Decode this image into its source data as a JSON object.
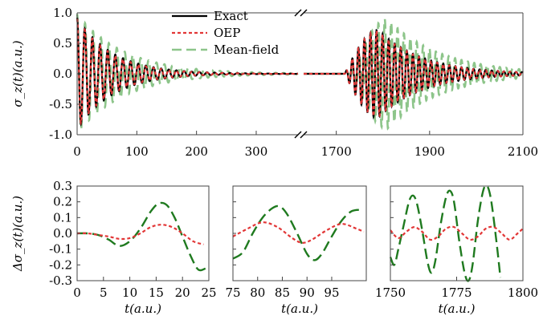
{
  "chart_data": [
    {
      "id": "top",
      "type": "line",
      "ylabel": "σ_z(t)(a.u.)",
      "ylim": [
        -1.0,
        1.0
      ],
      "yticks": [
        "-1.0",
        "-0.5",
        "0.0",
        "0.5",
        "1.0"
      ],
      "x_broken": true,
      "segments": [
        {
          "xlim": [
            0,
            370
          ],
          "xticks": [
            0,
            100,
            200,
            300
          ]
        },
        {
          "xlim": [
            1630,
            2100
          ],
          "xticks": [
            1700,
            1900,
            2100
          ]
        }
      ],
      "legend": {
        "position": "top-center"
      },
      "series": [
        {
          "name": "Exact",
          "color": "#000000",
          "style": "solid",
          "segment1": {
            "amplitude": 0.92,
            "period": 12.8,
            "decay": 60
          },
          "segment2": {
            "amplitude": 0.72,
            "period": 13.0,
            "rise_start": 1718,
            "peak": 1790,
            "decay": 95
          }
        },
        {
          "name": "OEP",
          "color": "#e23636",
          "style": "dotted",
          "segment1": {
            "amplitude": 0.9,
            "period": 12.8,
            "decay": 58
          },
          "segment2": {
            "amplitude": 0.71,
            "period": 13.0,
            "rise_start": 1718,
            "peak": 1790,
            "decay": 93
          }
        },
        {
          "name": "Mean-field",
          "color": "#8dc58a",
          "style": "dashed",
          "segment1": {
            "amplitude": 0.98,
            "period": 13.3,
            "decay": 80
          },
          "segment2": {
            "amplitude": 0.9,
            "period": 13.7,
            "rise_start": 1732,
            "peak": 1810,
            "decay": 115
          }
        }
      ]
    },
    {
      "id": "bottom",
      "type": "line",
      "ylabel": "Δσ_z(t)(a.u.)",
      "ylim": [
        -0.3,
        0.3
      ],
      "yticks": [
        "-0.3",
        "-0.2",
        "-0.1",
        "0.0",
        "0.1",
        "0.2",
        "0.3"
      ],
      "xlabel": "t(a.u.)",
      "panels": [
        {
          "xlim": [
            0,
            25
          ],
          "xticks": [
            0,
            5,
            10,
            15,
            20,
            25
          ],
          "oep": [
            [
              0,
              0
            ],
            [
              2,
              0
            ],
            [
              4,
              -0.01
            ],
            [
              6,
              -0.02
            ],
            [
              8,
              -0.035
            ],
            [
              10,
              -0.03
            ],
            [
              12,
              0
            ],
            [
              14,
              0.04
            ],
            [
              16,
              0.055
            ],
            [
              18,
              0.04
            ],
            [
              20,
              0
            ],
            [
              22,
              -0.05
            ],
            [
              24,
              -0.07
            ]
          ],
          "meanfield": [
            [
              0,
              0
            ],
            [
              2,
              0
            ],
            [
              4,
              -0.01
            ],
            [
              6,
              -0.04
            ],
            [
              8,
              -0.08
            ],
            [
              10,
              -0.05
            ],
            [
              12,
              0.03
            ],
            [
              14,
              0.14
            ],
            [
              15.5,
              0.19
            ],
            [
              17,
              0.18
            ],
            [
              18.5,
              0.1
            ],
            [
              20,
              -0.02
            ],
            [
              21.5,
              -0.14
            ],
            [
              23,
              -0.23
            ],
            [
              24.5,
              -0.22
            ]
          ]
        },
        {
          "xlim": [
            75,
            102
          ],
          "xticks": [
            75,
            80,
            85,
            90,
            95
          ],
          "oep": [
            [
              75,
              -0.02
            ],
            [
              78,
              0.03
            ],
            [
              81,
              0.07
            ],
            [
              84,
              0.04
            ],
            [
              87,
              -0.03
            ],
            [
              89,
              -0.06
            ],
            [
              91,
              -0.04
            ],
            [
              94,
              0.02
            ],
            [
              97,
              0.06
            ],
            [
              100,
              0.03
            ],
            [
              101.5,
              0.01
            ]
          ],
          "meanfield": [
            [
              75,
              -0.16
            ],
            [
              77,
              -0.12
            ],
            [
              79,
              0.0
            ],
            [
              81,
              0.1
            ],
            [
              83,
              0.16
            ],
            [
              84.5,
              0.17
            ],
            [
              86,
              0.12
            ],
            [
              88,
              0.0
            ],
            [
              90,
              -0.13
            ],
            [
              91.5,
              -0.17
            ],
            [
              93,
              -0.13
            ],
            [
              95,
              -0.02
            ],
            [
              97,
              0.08
            ],
            [
              99,
              0.14
            ],
            [
              101,
              0.15
            ]
          ]
        },
        {
          "xlim": [
            1750,
            1800
          ],
          "xticks": [
            1750,
            1775,
            1800
          ],
          "oep": [
            [
              1750,
              0.02
            ],
            [
              1753,
              -0.03
            ],
            [
              1756,
              0.01
            ],
            [
              1759,
              0.04
            ],
            [
              1762,
              0.01
            ],
            [
              1765,
              -0.04
            ],
            [
              1768,
              -0.02
            ],
            [
              1771,
              0.03
            ],
            [
              1774,
              0.04
            ],
            [
              1777,
              0.0
            ],
            [
              1780,
              -0.04
            ],
            [
              1783,
              -0.02
            ],
            [
              1786,
              0.03
            ],
            [
              1789,
              0.04
            ],
            [
              1792,
              0.0
            ],
            [
              1795,
              -0.04
            ],
            [
              1798,
              0.0
            ],
            [
              1800,
              0.03
            ]
          ],
          "meanfield": [
            [
              1750,
              -0.15
            ],
            [
              1751.5,
              -0.2
            ],
            [
              1753,
              -0.1
            ],
            [
              1755,
              0.05
            ],
            [
              1757,
              0.2
            ],
            [
              1758.5,
              0.24
            ],
            [
              1760,
              0.19
            ],
            [
              1762,
              0.02
            ],
            [
              1764,
              -0.18
            ],
            [
              1765.5,
              -0.25
            ],
            [
              1767,
              -0.17
            ],
            [
              1769,
              0.06
            ],
            [
              1771,
              0.23
            ],
            [
              1772.5,
              0.27
            ],
            [
              1774,
              0.2
            ],
            [
              1776,
              -0.05
            ],
            [
              1778,
              -0.25
            ],
            [
              1779.5,
              -0.3
            ],
            [
              1781,
              -0.2
            ],
            [
              1783,
              0.08
            ],
            [
              1785,
              0.27
            ],
            [
              1786.5,
              0.3
            ],
            [
              1788,
              0.21
            ],
            [
              1790,
              -0.05
            ],
            [
              1791.5,
              -0.28
            ]
          ]
        }
      ]
    }
  ]
}
